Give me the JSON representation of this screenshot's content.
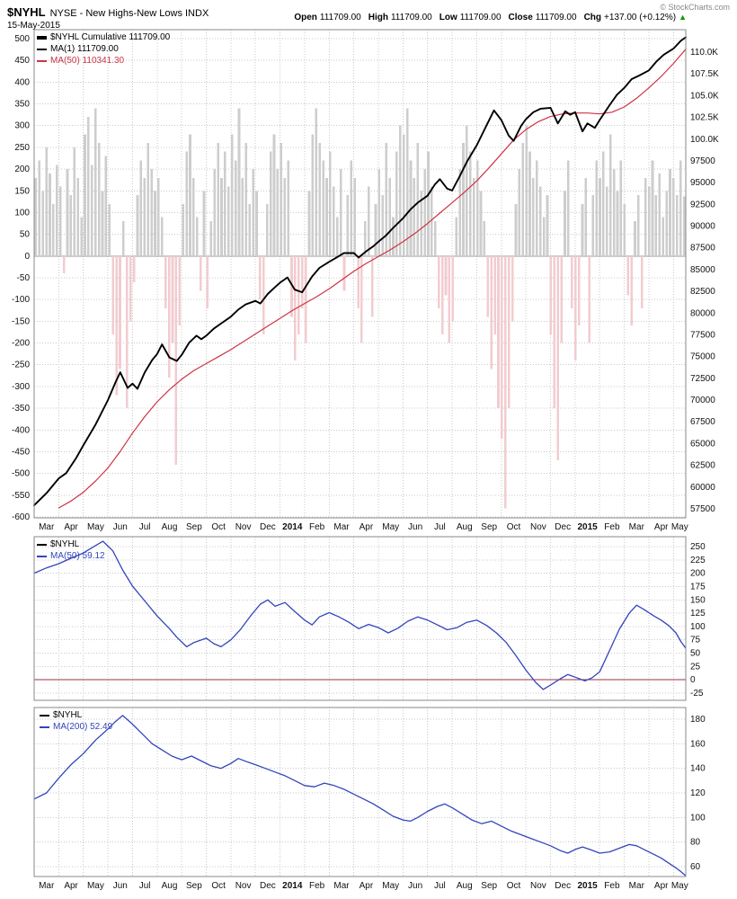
{
  "header": {
    "symbol": "$NYHL",
    "description": "NYSE - New Highs-New Lows INDX",
    "date": "15-May-2015",
    "copyright": "© StockCharts.com",
    "quote": [
      {
        "label": "Open",
        "value": "111709.00"
      },
      {
        "label": "High",
        "value": "111709.00"
      },
      {
        "label": "Low",
        "value": "111709.00"
      },
      {
        "label": "Close",
        "value": "111709.00"
      },
      {
        "label": "Chg",
        "value": "+137.00 (+0.12%)",
        "direction": "up"
      }
    ]
  },
  "colors": {
    "line_black": "#000000",
    "line_red": "#cc3344",
    "line_blue": "#3344bb",
    "bar_positive": "#cdcdcd",
    "bar_negative": "#f2ccd0",
    "zero_line_red": "#993344",
    "change_green": "#009900",
    "grid": "#c9c9c9",
    "border": "#888888",
    "tick_text": "#111111"
  },
  "months": [
    "Mar",
    "Apr",
    "May",
    "Jun",
    "Jul",
    "Aug",
    "Sep",
    "Oct",
    "Nov",
    "Dec",
    "2014",
    "Feb",
    "Mar",
    "Apr",
    "May",
    "Jun",
    "Jul",
    "Aug",
    "Sep",
    "Oct",
    "Nov",
    "Dec",
    "2015",
    "Feb",
    "Mar",
    "Apr",
    "May"
  ],
  "x_domain_months": 26.5,
  "chart_data": [
    {
      "type": "line+bar",
      "title": "$NYHL Cumulative with daily New Highs-New Lows histogram",
      "legend": [
        "$NYHL Cumulative 111709.00",
        "MA(1) 111709.00",
        "MA(50) 110341.30"
      ],
      "left_axis": {
        "ticks": [
          500,
          450,
          400,
          350,
          300,
          250,
          200,
          150,
          100,
          50,
          0,
          -50,
          -100,
          -150,
          -200,
          -250,
          -300,
          -350,
          -400,
          -450,
          -500,
          -550,
          -600
        ]
      },
      "right_axis": {
        "labels": [
          "110.0K",
          "107.5K",
          "105.0K",
          "102.5K",
          "100.0K",
          "97500",
          "95000",
          "92500",
          "90000",
          "87500",
          "85000",
          "82500",
          "80000",
          "77500",
          "75000",
          "72500",
          "70000",
          "67500",
          "65000",
          "62500",
          "60000",
          "57500"
        ],
        "top_value": 110000,
        "step": 2500
      },
      "bars": {
        "name": "daily-new-highs-minus-new-lows",
        "values": [
          180,
          220,
          150,
          250,
          190,
          120,
          210,
          160,
          -40,
          200,
          140,
          250,
          180,
          90,
          280,
          320,
          210,
          340,
          260,
          150,
          230,
          120,
          -180,
          -320,
          -260,
          80,
          -350,
          -150,
          -60,
          140,
          220,
          180,
          260,
          200,
          150,
          180,
          90,
          -120,
          -280,
          -200,
          -480,
          -160,
          120,
          240,
          280,
          180,
          90,
          -80,
          150,
          -120,
          80,
          200,
          260,
          180,
          240,
          160,
          280,
          220,
          340,
          180,
          260,
          120,
          200,
          150,
          -100,
          -180,
          120,
          240,
          280,
          200,
          260,
          180,
          220,
          -140,
          -240,
          -180,
          -120,
          -200,
          150,
          280,
          340,
          260,
          220,
          180,
          240,
          160,
          90,
          200,
          -80,
          140,
          220,
          180,
          -120,
          -200,
          80,
          160,
          -140,
          120,
          200,
          140,
          260,
          180,
          90,
          240,
          300,
          280,
          340,
          220,
          180,
          260,
          150,
          200,
          240,
          160,
          80,
          -120,
          -180,
          -90,
          -200,
          -150,
          90,
          200,
          260,
          300,
          240,
          180,
          220,
          150,
          80,
          -140,
          -260,
          -180,
          -350,
          -420,
          -580,
          -350,
          -150,
          120,
          200,
          260,
          300,
          240,
          180,
          220,
          160,
          90,
          140,
          -180,
          -350,
          -470,
          -200,
          150,
          220,
          -120,
          -240,
          -160,
          120,
          180,
          -200,
          140,
          220,
          180,
          240,
          160,
          280,
          200,
          150,
          220,
          120,
          -90,
          -160,
          80,
          140,
          -120,
          180,
          160,
          220,
          140,
          190,
          90,
          150,
          200,
          180,
          140,
          220,
          137
        ]
      },
      "series": [
        {
          "name": "$NYHL Cumulative (MA(1))",
          "color_key": "line_black",
          "x": [
            0,
            0.5,
            1,
            1.3,
            1.7,
            2,
            2.5,
            3,
            3.3,
            3.5,
            3.8,
            4,
            4.2,
            4.5,
            4.8,
            5,
            5.2,
            5.5,
            5.8,
            6,
            6.3,
            6.6,
            6.8,
            7,
            7.3,
            7.6,
            8,
            8.3,
            8.6,
            9,
            9.2,
            9.5,
            9.8,
            10,
            10.3,
            10.6,
            10.9,
            11.3,
            11.6,
            12,
            12.3,
            12.6,
            13,
            13.2,
            13.5,
            13.8,
            14,
            14.3,
            14.6,
            15,
            15.3,
            15.6,
            16,
            16.3,
            16.5,
            16.8,
            17,
            17.3,
            17.6,
            18,
            18.4,
            18.7,
            19,
            19.3,
            19.5,
            19.8,
            20,
            20.3,
            20.6,
            21,
            21.3,
            21.6,
            21.8,
            22,
            22.3,
            22.5,
            22.8,
            23,
            23.4,
            23.7,
            24,
            24.3,
            24.6,
            25,
            25.3,
            25.6,
            26,
            26.3,
            26.5
          ],
          "values": [
            57900,
            59300,
            61000,
            61600,
            63300,
            64800,
            67200,
            70000,
            72000,
            73200,
            71400,
            71900,
            71300,
            73200,
            74600,
            75300,
            76400,
            74900,
            74500,
            75200,
            76600,
            77400,
            77000,
            77400,
            78200,
            78800,
            79600,
            80400,
            81000,
            81400,
            81100,
            82200,
            83000,
            83500,
            84100,
            82700,
            82400,
            84200,
            85200,
            85900,
            86400,
            86900,
            86900,
            86400,
            87100,
            87700,
            88200,
            88900,
            89800,
            90900,
            91900,
            92700,
            93500,
            94800,
            95400,
            94300,
            94100,
            95700,
            97400,
            99300,
            101600,
            103300,
            102200,
            100400,
            99800,
            101500,
            102300,
            103100,
            103500,
            103600,
            101800,
            103200,
            102800,
            103100,
            100900,
            101800,
            101300,
            102200,
            103900,
            105100,
            105900,
            106900,
            107300,
            107900,
            108900,
            109700,
            110400,
            111300,
            111709
          ]
        },
        {
          "name": "MA(50)",
          "color_key": "line_red",
          "x": [
            1,
            1.5,
            2,
            2.5,
            3,
            3.5,
            4,
            4.5,
            5,
            5.5,
            6,
            6.5,
            7,
            7.5,
            8,
            8.5,
            9,
            9.5,
            10,
            10.5,
            11,
            11.5,
            12,
            12.5,
            13,
            13.5,
            14,
            14.5,
            15,
            15.5,
            16,
            16.5,
            17,
            17.5,
            18,
            18.5,
            19,
            19.5,
            20,
            20.5,
            21,
            21.5,
            22,
            22.5,
            23,
            23.5,
            24,
            24.5,
            25,
            25.5,
            26,
            26.5
          ],
          "values": [
            57600,
            58400,
            59400,
            60700,
            62200,
            64100,
            66200,
            68100,
            69800,
            71200,
            72400,
            73400,
            74200,
            75000,
            75800,
            76700,
            77600,
            78500,
            79400,
            80300,
            81100,
            81900,
            82800,
            83800,
            84800,
            85700,
            86500,
            87300,
            88200,
            89200,
            90300,
            91500,
            92700,
            93900,
            95200,
            96700,
            98300,
            99900,
            101100,
            102000,
            102600,
            102900,
            103000,
            103000,
            102900,
            103100,
            103700,
            104700,
            105900,
            107200,
            108700,
            110341
          ]
        }
      ]
    },
    {
      "type": "line",
      "title": "$NYHL MA(50)",
      "legend": [
        "$NYHL",
        "MA(50) 59.12"
      ],
      "right_axis": {
        "ticks": [
          250,
          225,
          200,
          175,
          150,
          125,
          100,
          75,
          50,
          25,
          0,
          -25
        ]
      },
      "zero_line": true,
      "series": [
        {
          "name": "MA(50) of daily $NYHL",
          "color_key": "line_blue",
          "x": [
            0,
            0.5,
            1,
            1.5,
            2,
            2.5,
            2.8,
            3.2,
            3.6,
            4,
            4.5,
            5,
            5.5,
            5.8,
            6.2,
            6.5,
            7,
            7.3,
            7.6,
            8,
            8.4,
            8.8,
            9.2,
            9.5,
            9.8,
            10.2,
            10.5,
            11,
            11.3,
            11.6,
            12,
            12.4,
            12.8,
            13.2,
            13.6,
            14,
            14.4,
            14.8,
            15.2,
            15.6,
            16,
            16.4,
            16.8,
            17.2,
            17.6,
            18,
            18.4,
            18.8,
            19.2,
            19.6,
            20,
            20.4,
            20.7,
            21,
            21.4,
            21.7,
            22,
            22.4,
            22.7,
            23,
            23.4,
            23.8,
            24.2,
            24.5,
            24.8,
            25.2,
            25.5,
            25.8,
            26.1,
            26.3,
            26.5
          ],
          "values": [
            200,
            210,
            218,
            228,
            238,
            252,
            260,
            242,
            206,
            176,
            148,
            120,
            96,
            80,
            62,
            70,
            78,
            68,
            62,
            75,
            95,
            120,
            142,
            150,
            138,
            145,
            132,
            112,
            103,
            118,
            126,
            118,
            108,
            96,
            104,
            98,
            88,
            97,
            110,
            118,
            112,
            103,
            94,
            98,
            108,
            112,
            102,
            88,
            70,
            45,
            18,
            -5,
            -18,
            -10,
            2,
            10,
            5,
            -2,
            4,
            15,
            55,
            95,
            125,
            140,
            132,
            120,
            112,
            102,
            88,
            72,
            59.12
          ]
        }
      ]
    },
    {
      "type": "line",
      "title": "$NYHL MA(200)",
      "legend": [
        "$NYHL",
        "MA(200) 52.49"
      ],
      "right_axis": {
        "ticks": [
          180,
          160,
          140,
          120,
          100,
          80,
          60
        ]
      },
      "series": [
        {
          "name": "MA(200) of daily $NYHL",
          "color_key": "line_blue",
          "x": [
            0,
            0.5,
            1,
            1.5,
            2,
            2.5,
            3,
            3.3,
            3.6,
            4,
            4.4,
            4.8,
            5.2,
            5.6,
            6,
            6.4,
            6.8,
            7.2,
            7.6,
            8,
            8.3,
            8.7,
            9,
            9.4,
            9.8,
            10.2,
            10.6,
            11,
            11.4,
            11.8,
            12.2,
            12.6,
            13,
            13.4,
            13.8,
            14.2,
            14.6,
            15,
            15.3,
            15.6,
            16,
            16.4,
            16.7,
            17,
            17.4,
            17.8,
            18.2,
            18.6,
            19,
            19.4,
            19.8,
            20.2,
            20.6,
            21,
            21.4,
            21.7,
            22,
            22.3,
            22.6,
            23,
            23.4,
            23.8,
            24.2,
            24.5,
            24.8,
            25.2,
            25.5,
            25.8,
            26.1,
            26.3,
            26.5
          ],
          "values": [
            115,
            120,
            132,
            143,
            152,
            163,
            172,
            178,
            183,
            176,
            168,
            160,
            155,
            150,
            147,
            150,
            146,
            142,
            140,
            144,
            148,
            145,
            143,
            140,
            137,
            134,
            130,
            126,
            125,
            128,
            126,
            123,
            119,
            115,
            111,
            106,
            101,
            98,
            97,
            100,
            105,
            109,
            111,
            108,
            103,
            98,
            95,
            97,
            93,
            89,
            86,
            83,
            80,
            77,
            73,
            71,
            74,
            76,
            74,
            71,
            72,
            75,
            78,
            77,
            74,
            70,
            67,
            63,
            59,
            56,
            52.49
          ]
        }
      ]
    }
  ]
}
